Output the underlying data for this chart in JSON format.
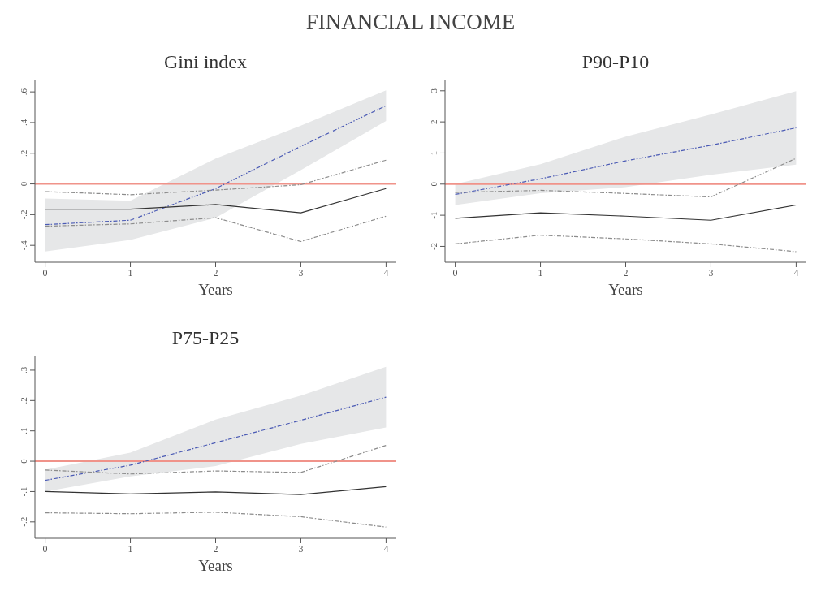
{
  "chart_data": [
    {
      "type": "other",
      "title": "FINANCIAL INCOME"
    },
    {
      "type": "line",
      "title": "Gini index",
      "xlabel": "Years",
      "x": [
        0,
        1,
        2,
        3,
        4
      ],
      "xlim": [
        -0.12,
        4.12
      ],
      "xticks": [
        0,
        1,
        2,
        3,
        4
      ],
      "ylim": [
        -0.51,
        0.68
      ],
      "yticks": [
        {
          "value": -0.4,
          "label": "-.4"
        },
        {
          "value": -0.2,
          "label": "-.2"
        },
        0,
        {
          "value": 0.2,
          "label": ".2"
        },
        {
          "value": 0.4,
          "label": ".4"
        },
        {
          "value": 0.6,
          "label": ".6"
        }
      ],
      "grid": false,
      "legend": false,
      "marker": "none",
      "ref_lines": [
        {
          "axis": "y",
          "value": 0,
          "color": "#f0938a"
        }
      ],
      "series": [
        {
          "color": "#4a5ab4",
          "line_style": "dashed",
          "values": [
            -0.265,
            -0.236,
            -0.03,
            0.245,
            0.51
          ],
          "lower": [
            -0.44,
            -0.365,
            -0.22,
            0.09,
            0.41
          ],
          "upper": [
            -0.095,
            -0.11,
            0.165,
            0.38,
            0.61
          ]
        },
        {
          "color": "#333333",
          "line_style": "solid",
          "values": [
            -0.164,
            -0.164,
            -0.134,
            -0.188,
            -0.03
          ]
        },
        {
          "color": "#8c8c8c",
          "line_style": "dashed",
          "values": [
            -0.05,
            -0.07,
            -0.04,
            -0.005,
            0.155
          ]
        },
        {
          "color": "#8c8c8c",
          "line_style": "dashed",
          "values": [
            -0.275,
            -0.26,
            -0.22,
            -0.375,
            -0.21
          ]
        }
      ]
    },
    {
      "type": "line",
      "title": "P90-P10",
      "xlabel": "Years",
      "x": [
        0,
        1,
        2,
        3,
        4
      ],
      "xlim": [
        -0.12,
        4.12
      ],
      "xticks": [
        0,
        1,
        2,
        3,
        4
      ],
      "ylim": [
        -2.51,
        3.36
      ],
      "yticks": [
        -2,
        -1,
        0,
        1,
        2,
        3
      ],
      "grid": false,
      "legend": false,
      "marker": "none",
      "ref_lines": [
        {
          "axis": "y",
          "value": 0,
          "color": "#f0938a"
        }
      ],
      "series": [
        {
          "color": "#4a5ab4",
          "line_style": "dashed",
          "values": [
            -0.33,
            0.17,
            0.75,
            1.25,
            1.81
          ],
          "lower": [
            -0.67,
            -0.29,
            -0.1,
            0.3,
            0.63
          ],
          "upper": [
            0,
            0.64,
            1.53,
            2.24,
            2.99
          ]
        },
        {
          "color": "#333333",
          "line_style": "solid",
          "values": [
            -1.1,
            -0.92,
            -1.03,
            -1.16,
            -0.67
          ]
        },
        {
          "color": "#8c8c8c",
          "line_style": "dashed",
          "values": [
            -0.27,
            -0.2,
            -0.3,
            -0.41,
            0.83
          ]
        },
        {
          "color": "#8c8c8c",
          "line_style": "dashed",
          "values": [
            -1.92,
            -1.64,
            -1.76,
            -1.92,
            -2.17
          ]
        }
      ]
    },
    {
      "type": "line",
      "title": "P75-P25",
      "xlabel": "Years",
      "x": [
        0,
        1,
        2,
        3,
        4
      ],
      "xlim": [
        -0.12,
        4.12
      ],
      "xticks": [
        0,
        1,
        2,
        3,
        4
      ],
      "ylim": [
        -0.254,
        0.348
      ],
      "yticks": [
        {
          "value": -0.2,
          "label": "-.2"
        },
        {
          "value": -0.1,
          "label": "-.1"
        },
        0,
        {
          "value": 0.1,
          "label": ".1"
        },
        {
          "value": 0.2,
          "label": ".2"
        },
        {
          "value": 0.3,
          "label": ".3"
        }
      ],
      "grid": false,
      "legend": false,
      "marker": "none",
      "ref_lines": [
        {
          "axis": "y",
          "value": 0,
          "color": "#f0938a"
        }
      ],
      "series": [
        {
          "color": "#4a5ab4",
          "line_style": "dashed",
          "values": [
            -0.063,
            -0.013,
            0.061,
            0.135,
            0.211
          ],
          "lower": [
            -0.1,
            -0.05,
            -0.016,
            0.057,
            0.111
          ],
          "upper": [
            -0.028,
            0.028,
            0.137,
            0.216,
            0.311
          ]
        },
        {
          "color": "#333333",
          "line_style": "solid",
          "values": [
            -0.1,
            -0.108,
            -0.101,
            -0.11,
            -0.084
          ]
        },
        {
          "color": "#8c8c8c",
          "line_style": "dashed",
          "values": [
            -0.029,
            -0.042,
            -0.032,
            -0.037,
            0.052
          ]
        },
        {
          "color": "#8c8c8c",
          "line_style": "dashed",
          "values": [
            -0.17,
            -0.173,
            -0.168,
            -0.183,
            -0.217
          ]
        }
      ]
    }
  ]
}
